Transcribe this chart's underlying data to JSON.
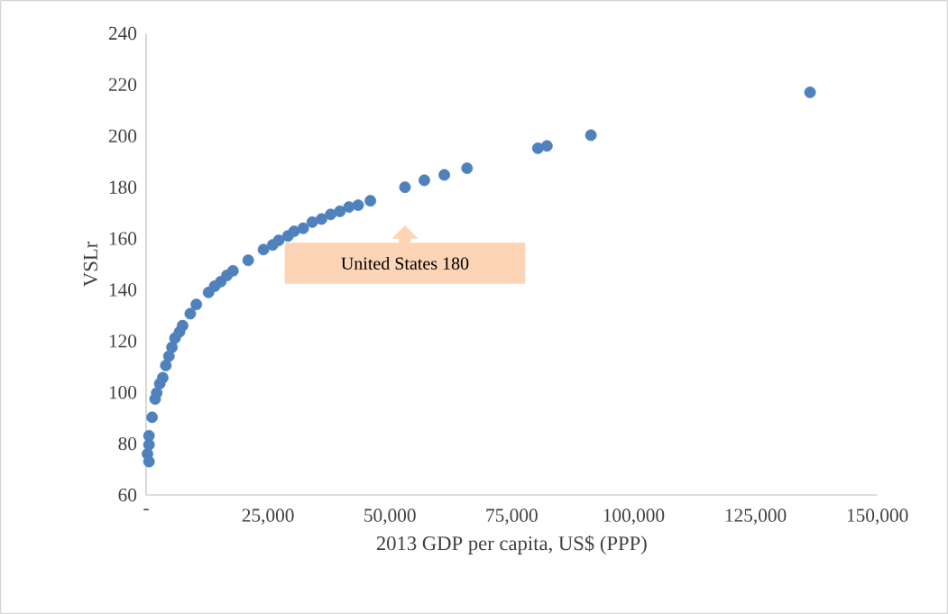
{
  "chart_data": {
    "type": "scatter",
    "xlabel": "2013 GDP per capita, US$ (PPP)",
    "ylabel": "VSLr",
    "x": [
      280,
      590,
      590,
      590,
      1220,
      1850,
      2170,
      2800,
      3410,
      4040,
      4670,
      5300,
      5930,
      6850,
      7480,
      9060,
      10300,
      12810,
      14060,
      15320,
      16570,
      17810,
      20940,
      24070,
      25960,
      27200,
      29090,
      30350,
      32220,
      34090,
      35980,
      37850,
      39740,
      41610,
      43500,
      46000,
      53100,
      57070,
      61170,
      65830,
      80370,
      82220,
      91240,
      136200
    ],
    "values": [
      76,
      73,
      79.6,
      83.1,
      90.3,
      97.4,
      99.8,
      103.4,
      105.7,
      110.5,
      114.1,
      117.6,
      121.2,
      123.6,
      126,
      130.7,
      134.3,
      139,
      141.4,
      143.2,
      145.6,
      147.4,
      151.5,
      155.7,
      157.5,
      159.3,
      161,
      162.8,
      164,
      166.4,
      167.6,
      169.4,
      170.6,
      172.3,
      173,
      174.7,
      180,
      182.7,
      184.8,
      187.4,
      195.2,
      196.1,
      200.3,
      217
    ],
    "color": "#4f81bd",
    "marker": "circle",
    "xlim": [
      0,
      150000
    ],
    "ylim": [
      60,
      240
    ],
    "xticks": [
      {
        "value": 0,
        "label": "-"
      },
      {
        "value": 25000,
        "label": "25,000"
      },
      {
        "value": 50000,
        "label": "50,000"
      },
      {
        "value": 75000,
        "label": "75,000"
      },
      {
        "value": 100000,
        "label": "100,000"
      },
      {
        "value": 125000,
        "label": "125,000"
      },
      {
        "value": 150000,
        "label": "150,000"
      }
    ],
    "yticks": [
      60,
      80,
      100,
      120,
      140,
      160,
      180,
      200,
      220,
      240
    ],
    "annotations": [
      "United States 180"
    ]
  }
}
